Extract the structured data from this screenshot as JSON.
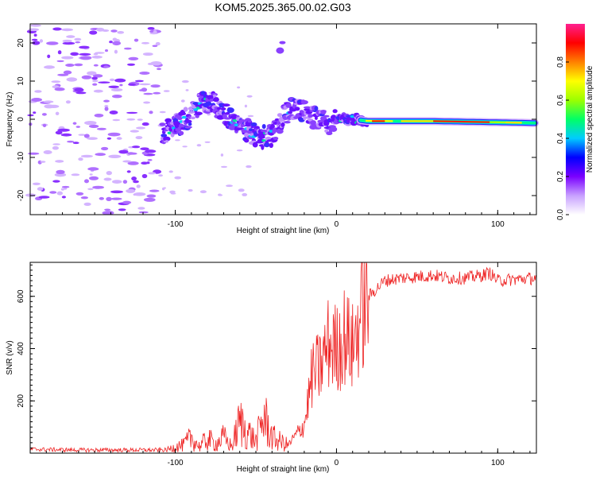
{
  "title": "KOM5.2025.365.00.02.G03",
  "chart_data": [
    {
      "type": "heatmap",
      "name": "spectrogram",
      "xlabel": "Height of straight line (km)",
      "ylabel": "Frequency (Hz)",
      "xlim": [
        -190,
        124
      ],
      "ylim": [
        -25,
        25
      ],
      "xticks": [
        -100,
        0,
        100
      ],
      "yticks": [
        -20,
        -10,
        0,
        10,
        20
      ],
      "colorbar": {
        "label": "Normalized spectral amplitude",
        "range": [
          0,
          1
        ],
        "ticks": [
          0.0,
          0.2,
          0.4,
          0.6,
          0.8
        ],
        "tick_labels": [
          "0.0",
          "0.2",
          "0.4",
          "0.6",
          "0.8"
        ],
        "colors": [
          "#ffffff",
          "#c8a0ff",
          "#7a00ff",
          "#0000ff",
          "#00ccff",
          "#00ff66",
          "#9cff00",
          "#ffff00",
          "#ff8000",
          "#ff0000",
          "#ff2090"
        ]
      },
      "signal_track": [
        {
          "x": -108,
          "f": -4
        },
        {
          "x": -100,
          "f": -2
        },
        {
          "x": -90,
          "f": 1
        },
        {
          "x": -85,
          "f": 4
        },
        {
          "x": -78,
          "f": 5
        },
        {
          "x": -72,
          "f": 2
        },
        {
          "x": -65,
          "f": 0
        },
        {
          "x": -55,
          "f": -3
        },
        {
          "x": -48,
          "f": -5
        },
        {
          "x": -40,
          "f": -4
        },
        {
          "x": -35,
          "f": -1
        },
        {
          "x": -28,
          "f": 3
        },
        {
          "x": -20,
          "f": 2
        },
        {
          "x": -12,
          "f": 0
        },
        {
          "x": -5,
          "f": -1
        },
        {
          "x": 0,
          "f": 0
        },
        {
          "x": 10,
          "f": 0
        },
        {
          "x": 20,
          "f": -0.5
        },
        {
          "x": 60,
          "f": -0.5
        },
        {
          "x": 100,
          "f": -0.8
        },
        {
          "x": 124,
          "f": -1
        }
      ],
      "isolated_feature": {
        "x": -35,
        "f": 18
      }
    },
    {
      "type": "line",
      "name": "snr",
      "xlabel": "Height of straight line (km)",
      "ylabel": "SNR (v/v)",
      "xlim": [
        -190,
        124
      ],
      "ylim": [
        0,
        730
      ],
      "xticks": [
        -100,
        0,
        100
      ],
      "yticks": [
        200,
        400,
        600
      ],
      "color": "#ee2222",
      "series": [
        {
          "name": "SNR",
          "x": [
            -190,
            -160,
            -130,
            -105,
            -100,
            -95,
            -90,
            -85,
            -80,
            -75,
            -70,
            -65,
            -60,
            -55,
            -50,
            -45,
            -40,
            -35,
            -30,
            -25,
            -20,
            -15,
            -10,
            -5,
            0,
            5,
            10,
            15,
            20,
            25,
            30,
            40,
            50,
            60,
            70,
            80,
            90,
            95,
            100,
            110,
            124
          ],
          "y": [
            15,
            12,
            12,
            12,
            25,
            30,
            60,
            25,
            55,
            35,
            60,
            25,
            120,
            80,
            45,
            140,
            60,
            45,
            30,
            70,
            110,
            300,
            330,
            420,
            400,
            450,
            400,
            530,
            600,
            630,
            660,
            670,
            675,
            680,
            670,
            670,
            680,
            690,
            660,
            665,
            670
          ]
        }
      ]
    }
  ]
}
